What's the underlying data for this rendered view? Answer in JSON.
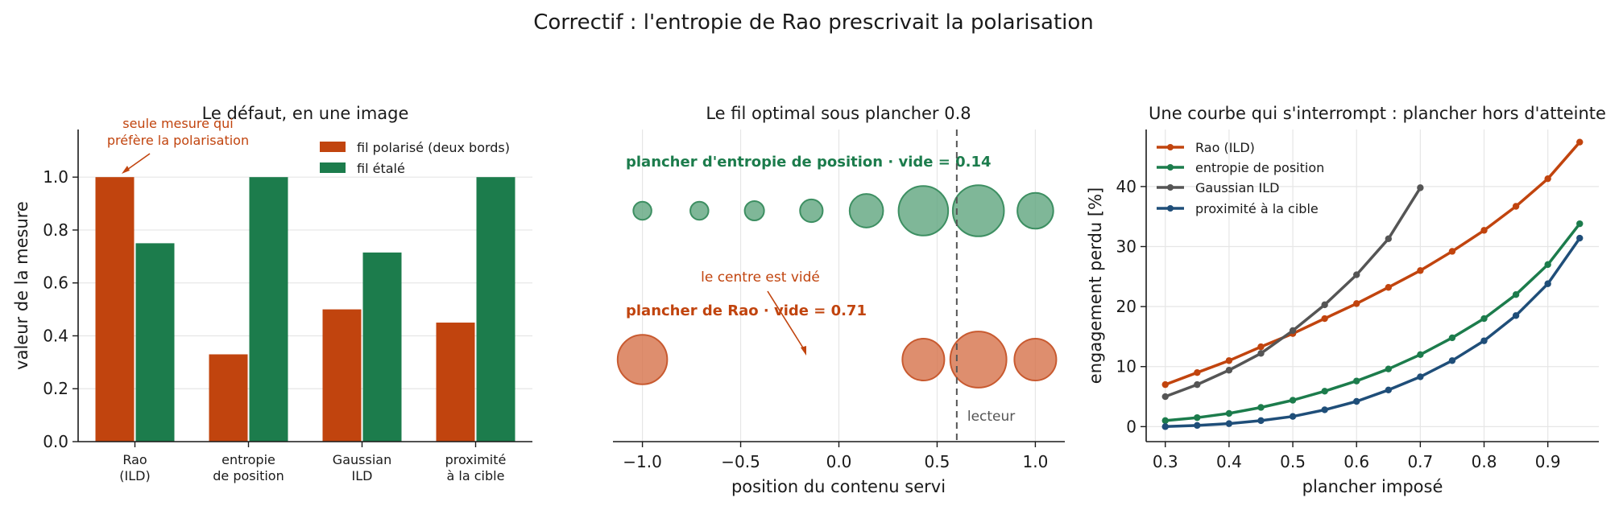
{
  "figure": {
    "title": "Correctif : l'entropie de Rao prescrivait la polarisation"
  },
  "colors": {
    "rao": "#c1440e",
    "green": "#1c7c4c",
    "green_bubble": "#5fa57e",
    "rao_bubble": "#d6724a",
    "gaussian": "#555555",
    "proximity": "#1f4e79",
    "reader_line": "#555555"
  },
  "chart_data": [
    {
      "type": "bar",
      "title": "Le défaut, en une image",
      "ylabel": "valeur de la mesure",
      "ylim": [
        0,
        1.18
      ],
      "yticks": [
        "0.0",
        "0.2",
        "0.4",
        "0.6",
        "0.8",
        "1.0"
      ],
      "categories": [
        [
          "Rao",
          "(ILD)"
        ],
        [
          "entropie",
          "de position"
        ],
        [
          "Gaussian",
          "ILD"
        ],
        [
          "proximité",
          "à la cible"
        ]
      ],
      "series": [
        {
          "name": "fil polarisé (deux bords)",
          "color": "#c1440e",
          "values": [
            1.0,
            0.33,
            0.5,
            0.45
          ]
        },
        {
          "name": "fil étalé",
          "color": "#1c7c4c",
          "values": [
            0.75,
            1.0,
            0.715,
            1.0
          ]
        }
      ],
      "legend_position": "top-right",
      "grid": true,
      "annotation": {
        "text": [
          "seule mesure qui",
          "préfère la polarisation"
        ],
        "points_to": {
          "category": 0,
          "value": 1.0
        }
      }
    },
    {
      "type": "scatter",
      "title": "Le fil optimal sous plancher 0.8",
      "xlabel": "position du contenu servi",
      "xlim": [
        -1.15,
        1.15
      ],
      "xticks": [
        "−1.0",
        "−0.5",
        "0.0",
        "0.5",
        "1.0"
      ],
      "grid": true,
      "rows": [
        {
          "label": "plancher d'entropie de position · vide = 0.14",
          "color": "#1c7c4c",
          "points": [
            {
              "x": -1.0,
              "size": 0.014
            },
            {
              "x": -0.71,
              "size": 0.014
            },
            {
              "x": -0.43,
              "size": 0.016
            },
            {
              "x": -0.14,
              "size": 0.022
            },
            {
              "x": 0.14,
              "size": 0.048
            },
            {
              "x": 0.43,
              "size": 0.105
            },
            {
              "x": 0.71,
              "size": 0.112
            },
            {
              "x": 1.0,
              "size": 0.055
            }
          ]
        },
        {
          "label": "plancher de Rao · vide = 0.71",
          "color": "#c1440e",
          "points": [
            {
              "x": -1.0,
              "size": 0.105
            },
            {
              "x": 0.43,
              "size": 0.075
            },
            {
              "x": 0.71,
              "size": 0.135
            },
            {
              "x": 1.0,
              "size": 0.075
            }
          ]
        }
      ],
      "reader": {
        "x": 0.6,
        "label": "lecteur"
      },
      "annotation": {
        "text": "le centre est vidé",
        "points_to": {
          "x": -0.15,
          "row": 1
        }
      }
    },
    {
      "type": "line",
      "title": "Une courbe qui s'interrompt : plancher hors d'atteinte",
      "xlabel": "plancher imposé",
      "ylabel": "engagement perdu  [%]",
      "xlim": [
        0.27,
        0.98
      ],
      "ylim": [
        -2.5,
        49.5
      ],
      "xticks": [
        0.3,
        0.4,
        0.5,
        0.6,
        0.7,
        0.8,
        0.9
      ],
      "yticks": [
        0,
        10,
        20,
        30,
        40
      ],
      "grid": true,
      "legend_position": "top-left",
      "series": [
        {
          "name": "Rao (ILD)",
          "color": "#c1440e",
          "x": [
            0.3,
            0.35,
            0.4,
            0.45,
            0.5,
            0.55,
            0.6,
            0.65,
            0.7,
            0.75,
            0.8,
            0.85,
            0.9,
            0.95
          ],
          "y": [
            7.0,
            9.0,
            11.0,
            13.3,
            15.5,
            18.0,
            20.5,
            23.2,
            26.0,
            29.2,
            32.7,
            36.7,
            41.3,
            47.4
          ]
        },
        {
          "name": "entropie de position",
          "color": "#1c7c4c",
          "x": [
            0.3,
            0.35,
            0.4,
            0.45,
            0.5,
            0.55,
            0.6,
            0.65,
            0.7,
            0.75,
            0.8,
            0.85,
            0.9,
            0.95
          ],
          "y": [
            1.0,
            1.5,
            2.2,
            3.2,
            4.4,
            5.9,
            7.6,
            9.6,
            12.0,
            14.8,
            18.0,
            22.0,
            27.0,
            33.8
          ]
        },
        {
          "name": "Gaussian ILD",
          "color": "#555555",
          "x": [
            0.3,
            0.35,
            0.4,
            0.45,
            0.5,
            0.55,
            0.6,
            0.65,
            0.7
          ],
          "y": [
            5.0,
            7.0,
            9.4,
            12.2,
            16.0,
            20.3,
            25.3,
            31.3,
            39.8
          ]
        },
        {
          "name": "proximité à la cible",
          "color": "#1f4e79",
          "x": [
            0.3,
            0.35,
            0.4,
            0.45,
            0.5,
            0.55,
            0.6,
            0.65,
            0.7,
            0.75,
            0.8,
            0.85,
            0.9,
            0.95
          ],
          "y": [
            0.0,
            0.2,
            0.5,
            1.0,
            1.7,
            2.8,
            4.2,
            6.1,
            8.3,
            11.0,
            14.3,
            18.5,
            23.8,
            31.4
          ]
        }
      ]
    }
  ]
}
